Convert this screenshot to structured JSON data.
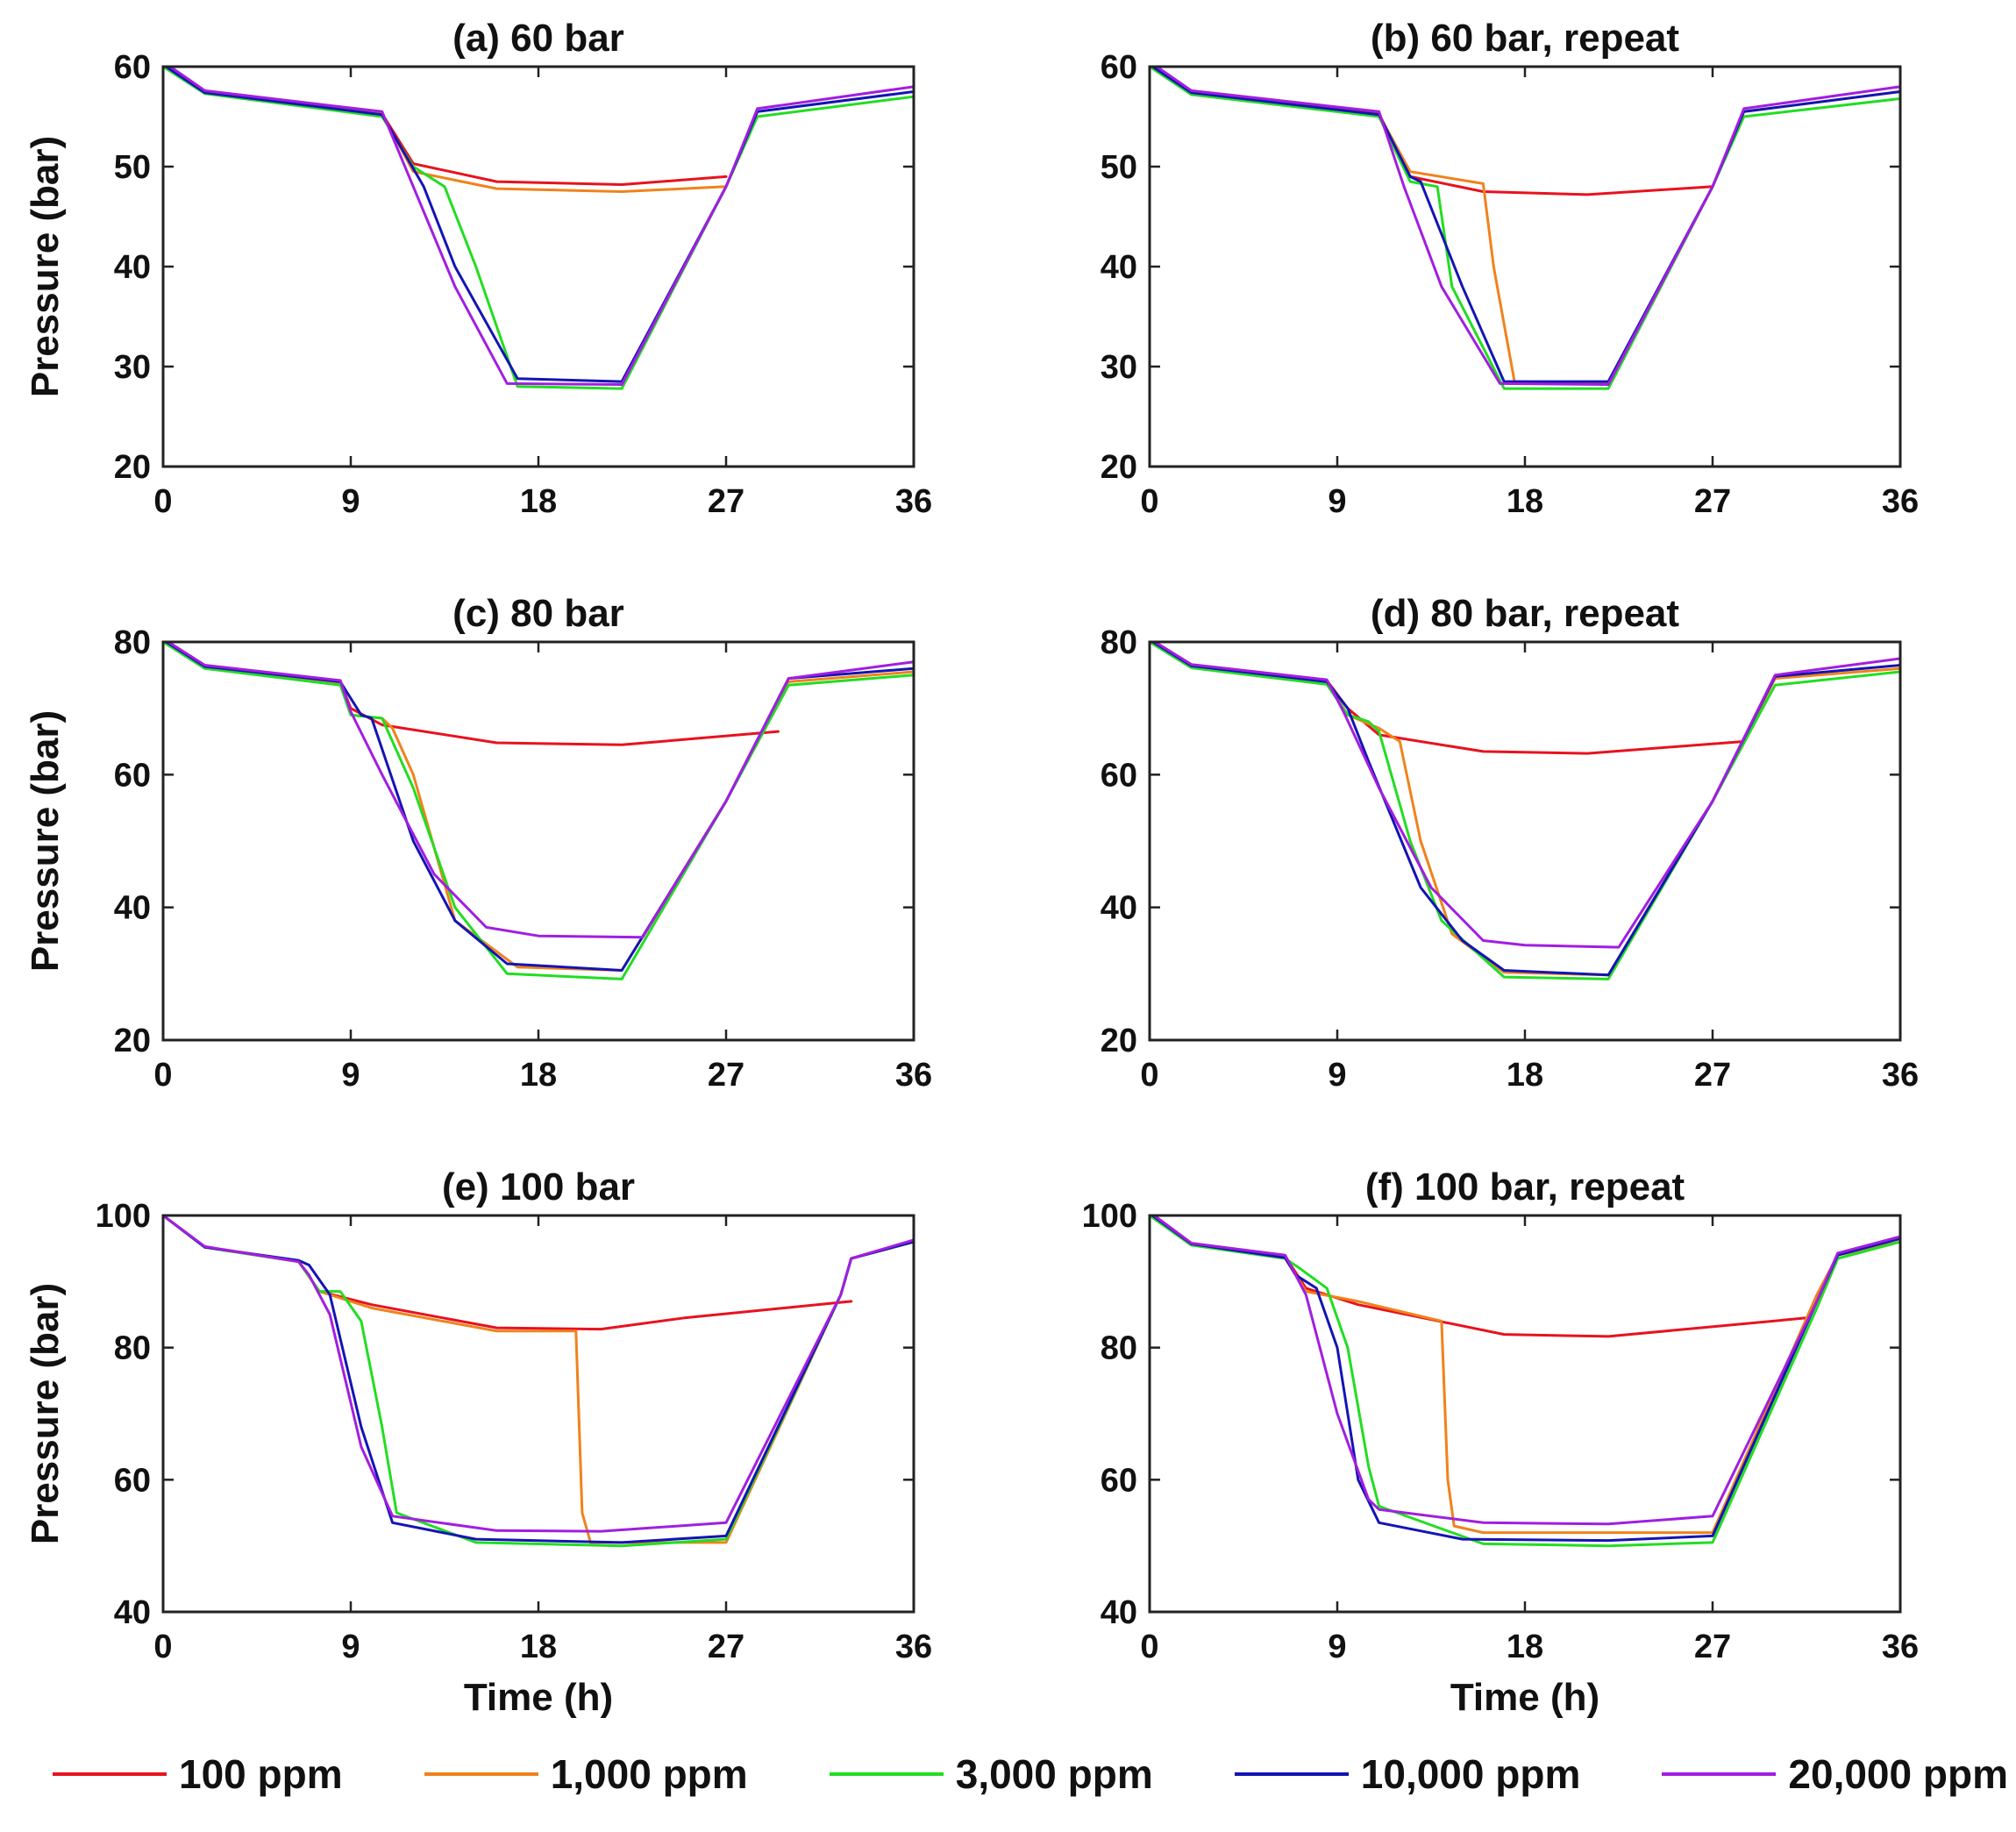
{
  "colors": {
    "100 ppm": "#e8121e",
    "1,000 ppm": "#f0821c",
    "3,000 ppm": "#22dd22",
    "10,000 ppm": "#1414b4",
    "20,000 ppm": "#a21ee0"
  },
  "legend": {
    "items": [
      {
        "label": "100 ppm",
        "color": "#e8121e"
      },
      {
        "label": "1,000 ppm",
        "color": "#f0821c"
      },
      {
        "label": "3,000 ppm",
        "color": "#22dd22"
      },
      {
        "label": "10,000 ppm",
        "color": "#1414b4"
      },
      {
        "label": "20,000 ppm",
        "color": "#a21ee0"
      }
    ]
  },
  "chart_data": [
    {
      "type": "line",
      "title": "(a) 60 bar",
      "xlabel": "",
      "ylabel": "Pressure (bar)",
      "xlim": [
        0,
        36
      ],
      "ylim": [
        20,
        60
      ],
      "xticks": [
        "0",
        "9",
        "18",
        "27",
        "36"
      ],
      "yticks": [
        "20",
        "30",
        "40",
        "50",
        "60"
      ],
      "series": [
        {
          "name": "100 ppm",
          "x": [
            0,
            2,
            10.5,
            12,
            16,
            22,
            27
          ],
          "y": [
            60.3,
            57.5,
            55.3,
            50.3,
            48.5,
            48.2,
            49
          ]
        },
        {
          "name": "1,000 ppm",
          "x": [
            0,
            2,
            10.5,
            12,
            16,
            22,
            27
          ],
          "y": [
            60.3,
            57.5,
            55.3,
            49.5,
            47.8,
            47.5,
            48
          ]
        },
        {
          "name": "3,000 ppm",
          "x": [
            0,
            2,
            10.5,
            12,
            13.5,
            15,
            17,
            22,
            27,
            28.5,
            36
          ],
          "y": [
            60,
            57.3,
            55,
            50,
            48,
            40,
            28,
            27.8,
            48,
            55,
            57
          ]
        },
        {
          "name": "10,000 ppm",
          "x": [
            0,
            2,
            10.5,
            12.5,
            14,
            17,
            22,
            27,
            28.5,
            36
          ],
          "y": [
            60.2,
            57.4,
            55.2,
            48,
            40,
            28.8,
            28.5,
            48,
            55.5,
            57.5
          ]
        },
        {
          "name": "20,000 ppm",
          "x": [
            0,
            2,
            10.5,
            12,
            14,
            16.5,
            22,
            27,
            28.5,
            36
          ],
          "y": [
            60.5,
            57.6,
            55.5,
            48,
            38,
            28.3,
            28.2,
            48,
            55.8,
            58
          ]
        }
      ]
    },
    {
      "type": "line",
      "title": "(b) 60 bar, repeat",
      "xlabel": "",
      "ylabel": "",
      "xlim": [
        0,
        36
      ],
      "ylim": [
        20,
        60
      ],
      "xticks": [
        "0",
        "9",
        "18",
        "27",
        "36"
      ],
      "yticks": [
        "20",
        "30",
        "40",
        "50",
        "60"
      ],
      "series": [
        {
          "name": "100 ppm",
          "x": [
            0,
            2,
            11,
            12.5,
            16,
            21,
            27
          ],
          "y": [
            60.3,
            57.5,
            55.3,
            49,
            47.5,
            47.2,
            48
          ]
        },
        {
          "name": "1,000 ppm",
          "x": [
            0,
            2,
            11,
            12.5,
            16,
            16.5,
            17.5,
            22,
            27,
            28.5,
            36
          ],
          "y": [
            60.2,
            57.4,
            55.2,
            49.5,
            48.3,
            40,
            28.5,
            28.3,
            48,
            55.5,
            57.5
          ]
        },
        {
          "name": "3,000 ppm",
          "x": [
            0,
            2,
            11,
            12.5,
            13.8,
            14.5,
            17,
            22,
            27,
            28.5,
            36
          ],
          "y": [
            60,
            57.2,
            55,
            48.5,
            48,
            38,
            27.8,
            27.8,
            48,
            55,
            56.8
          ]
        },
        {
          "name": "10,000 ppm",
          "x": [
            0,
            2,
            11,
            12.5,
            13,
            15,
            17,
            22,
            27,
            28.5,
            36
          ],
          "y": [
            60.2,
            57.4,
            55.2,
            49,
            48.5,
            38,
            28.5,
            28.5,
            48,
            55.5,
            57.5
          ]
        },
        {
          "name": "20,000 ppm",
          "x": [
            0,
            2,
            11,
            12.2,
            14,
            16.8,
            22,
            27,
            28.5,
            36
          ],
          "y": [
            60.5,
            57.6,
            55.5,
            48,
            38,
            28.3,
            28.2,
            48,
            55.8,
            58
          ]
        }
      ]
    },
    {
      "type": "line",
      "title": "(c) 80 bar",
      "xlabel": "",
      "ylabel": "Pressure (bar)",
      "xlim": [
        0,
        36
      ],
      "ylim": [
        20,
        80
      ],
      "xticks": [
        "0",
        "9",
        "18",
        "27",
        "36"
      ],
      "yticks": [
        "20",
        "40",
        "60",
        "80"
      ],
      "series": [
        {
          "name": "100 ppm",
          "x": [
            0,
            2,
            8.5,
            9,
            10.5,
            16,
            22,
            29.5
          ],
          "y": [
            80.3,
            76.3,
            74,
            70,
            67.5,
            64.8,
            64.5,
            66.5
          ]
        },
        {
          "name": "1,000 ppm",
          "x": [
            0,
            2,
            8.5,
            9,
            10.5,
            11,
            12,
            14,
            17,
            22,
            27,
            30,
            36
          ],
          "y": [
            80.2,
            76.2,
            73.8,
            69,
            68.5,
            67,
            60,
            38,
            31,
            30.5,
            56,
            74,
            75.5
          ]
        },
        {
          "name": "3,000 ppm",
          "x": [
            0,
            2,
            8.5,
            9,
            10.5,
            12,
            14,
            16.5,
            22,
            27,
            30,
            36
          ],
          "y": [
            80,
            76,
            73.5,
            69,
            68.5,
            58,
            40,
            30,
            29.2,
            56,
            73.5,
            75
          ]
        },
        {
          "name": "10,000 ppm",
          "x": [
            0,
            2,
            8.5,
            9.5,
            10,
            12,
            14,
            16.5,
            22,
            27,
            30,
            36
          ],
          "y": [
            80.3,
            76.3,
            74,
            69,
            68.5,
            50,
            38,
            31.5,
            30.5,
            56,
            74.5,
            76
          ]
        },
        {
          "name": "20,000 ppm",
          "x": [
            0,
            2,
            8.5,
            9,
            10.5,
            13,
            15.5,
            18,
            23,
            27,
            30,
            36
          ],
          "y": [
            80.5,
            76.5,
            74.2,
            69.5,
            60,
            45,
            37,
            35.7,
            35.5,
            56,
            74.5,
            77
          ]
        }
      ]
    },
    {
      "type": "line",
      "title": "(d) 80 bar, repeat",
      "xlabel": "",
      "ylabel": "",
      "xlim": [
        0,
        36
      ],
      "ylim": [
        20,
        80
      ],
      "xticks": [
        "0",
        "9",
        "18",
        "27",
        "36"
      ],
      "yticks": [
        "20",
        "40",
        "60",
        "80"
      ],
      "series": [
        {
          "name": "100 ppm",
          "x": [
            0,
            2,
            8.5,
            9.5,
            11,
            16,
            21,
            28.5
          ],
          "y": [
            80.3,
            76.5,
            74.2,
            70,
            66,
            63.5,
            63.2,
            65
          ]
        },
        {
          "name": "1,000 ppm",
          "x": [
            0,
            2,
            8.5,
            9.5,
            11,
            12,
            13,
            14.5,
            17,
            22,
            27,
            30,
            36
          ],
          "y": [
            80.2,
            76.3,
            74,
            69,
            67,
            65,
            50,
            36,
            30.2,
            29.8,
            56,
            74.5,
            76
          ]
        },
        {
          "name": "3,000 ppm",
          "x": [
            0,
            2,
            8.5,
            9.5,
            10.5,
            11,
            12.5,
            14,
            17,
            22,
            27,
            30,
            36
          ],
          "y": [
            80,
            76.1,
            73.6,
            69,
            68,
            66.5,
            50,
            38,
            29.5,
            29.2,
            56,
            73.5,
            75.5
          ]
        },
        {
          "name": "10,000 ppm",
          "x": [
            0,
            2,
            8.5,
            9.5,
            10.5,
            13,
            15,
            17,
            22,
            27,
            30,
            36
          ],
          "y": [
            80.3,
            76.4,
            74,
            70,
            62,
            43,
            35,
            30.5,
            29.8,
            56,
            74.8,
            76.5
          ]
        },
        {
          "name": "20,000 ppm",
          "x": [
            0,
            2,
            8.5,
            9.3,
            11,
            13.5,
            16,
            18,
            22.5,
            27,
            30,
            36
          ],
          "y": [
            80.5,
            76.6,
            74.3,
            69.5,
            58,
            43,
            35,
            34.3,
            34,
            56,
            75,
            77.5
          ]
        }
      ]
    },
    {
      "type": "line",
      "title": "(e) 100 bar",
      "xlabel": "Time (h)",
      "ylabel": "Pressure (bar)",
      "xlim": [
        0,
        36
      ],
      "ylim": [
        40,
        100
      ],
      "xticks": [
        "0",
        "9",
        "18",
        "27",
        "36"
      ],
      "yticks": [
        "40",
        "60",
        "80",
        "100"
      ],
      "series": [
        {
          "name": "100 ppm",
          "x": [
            0,
            2,
            6.5,
            7.5,
            10,
            16,
            21,
            25,
            33
          ],
          "y": [
            100,
            95.2,
            93,
            88.5,
            86.5,
            83,
            82.8,
            84.5,
            87
          ]
        },
        {
          "name": "1,000 ppm",
          "x": [
            0,
            2,
            6.5,
            7.5,
            10,
            16,
            19.8,
            20.1,
            20.5,
            27,
            32.5,
            33,
            36
          ],
          "y": [
            100,
            95.2,
            93,
            88.5,
            86,
            82.5,
            82.5,
            55,
            50.5,
            50.5,
            88,
            93.5,
            96
          ]
        },
        {
          "name": "3,000 ppm",
          "x": [
            0,
            2,
            6.5,
            7.5,
            8.5,
            9.5,
            10.5,
            11.2,
            15,
            22,
            27,
            32.5,
            33,
            36
          ],
          "y": [
            100,
            95.2,
            93,
            88.5,
            88.5,
            84,
            68,
            55,
            50.5,
            50,
            51,
            88,
            93.5,
            96
          ]
        },
        {
          "name": "10,000 ppm",
          "x": [
            0,
            2,
            6.5,
            7,
            8,
            9.5,
            11,
            15,
            22,
            27,
            32.5,
            33,
            36
          ],
          "y": [
            100,
            95.2,
            93.2,
            92.5,
            88,
            68,
            53.5,
            51,
            50.5,
            51.5,
            88,
            93.5,
            96
          ]
        },
        {
          "name": "20,000 ppm",
          "x": [
            0,
            2,
            6.5,
            7,
            8,
            9.5,
            11,
            16,
            21,
            27,
            32.5,
            33,
            36
          ],
          "y": [
            100,
            95.3,
            93,
            91,
            85,
            65,
            54.5,
            52.3,
            52.2,
            53.5,
            88,
            93.5,
            96.3
          ]
        }
      ]
    },
    {
      "type": "line",
      "title": "(f) 100 bar, repeat",
      "xlabel": "Time (h)",
      "ylabel": "",
      "xlim": [
        0,
        36
      ],
      "ylim": [
        40,
        100
      ],
      "xticks": [
        "0",
        "9",
        "18",
        "27",
        "36"
      ],
      "yticks": [
        "40",
        "60",
        "80",
        "100"
      ],
      "series": [
        {
          "name": "100 ppm",
          "x": [
            0,
            2,
            6.5,
            7.5,
            10,
            17,
            22,
            31.5
          ],
          "y": [
            100.5,
            95.8,
            93.8,
            89,
            86.5,
            82,
            81.7,
            84.5
          ]
        },
        {
          "name": "1,000 ppm",
          "x": [
            0,
            2,
            6.5,
            7.5,
            10,
            14,
            14.3,
            14.6,
            16,
            27,
            32,
            33,
            36
          ],
          "y": [
            100.3,
            95.6,
            93.5,
            88.5,
            87,
            84,
            60,
            53,
            52,
            52,
            88,
            94,
            96
          ]
        },
        {
          "name": "3,000 ppm",
          "x": [
            0,
            2,
            6.5,
            7.2,
            8.5,
            9.5,
            10.5,
            11,
            16,
            22,
            27,
            32,
            33,
            36
          ],
          "y": [
            100,
            95.5,
            93.5,
            92,
            89,
            80,
            62,
            56,
            50.3,
            50,
            50.5,
            86,
            93.5,
            96
          ]
        },
        {
          "name": "10,000 ppm",
          "x": [
            0,
            2,
            6.5,
            7,
            8,
            9,
            10,
            11,
            15,
            22,
            27,
            32,
            33,
            36
          ],
          "y": [
            100.3,
            95.7,
            93.6,
            91,
            89,
            80,
            60,
            53.5,
            51,
            50.8,
            51.5,
            87,
            94,
            96.5
          ]
        },
        {
          "name": "20,000 ppm",
          "x": [
            0,
            2,
            6.5,
            7.5,
            9,
            10.5,
            11,
            16,
            22,
            27,
            32,
            33,
            36
          ],
          "y": [
            100.5,
            95.8,
            94,
            88,
            70,
            57,
            55.5,
            53.5,
            53.3,
            54.5,
            87,
            94.3,
            96.8
          ]
        }
      ]
    }
  ]
}
